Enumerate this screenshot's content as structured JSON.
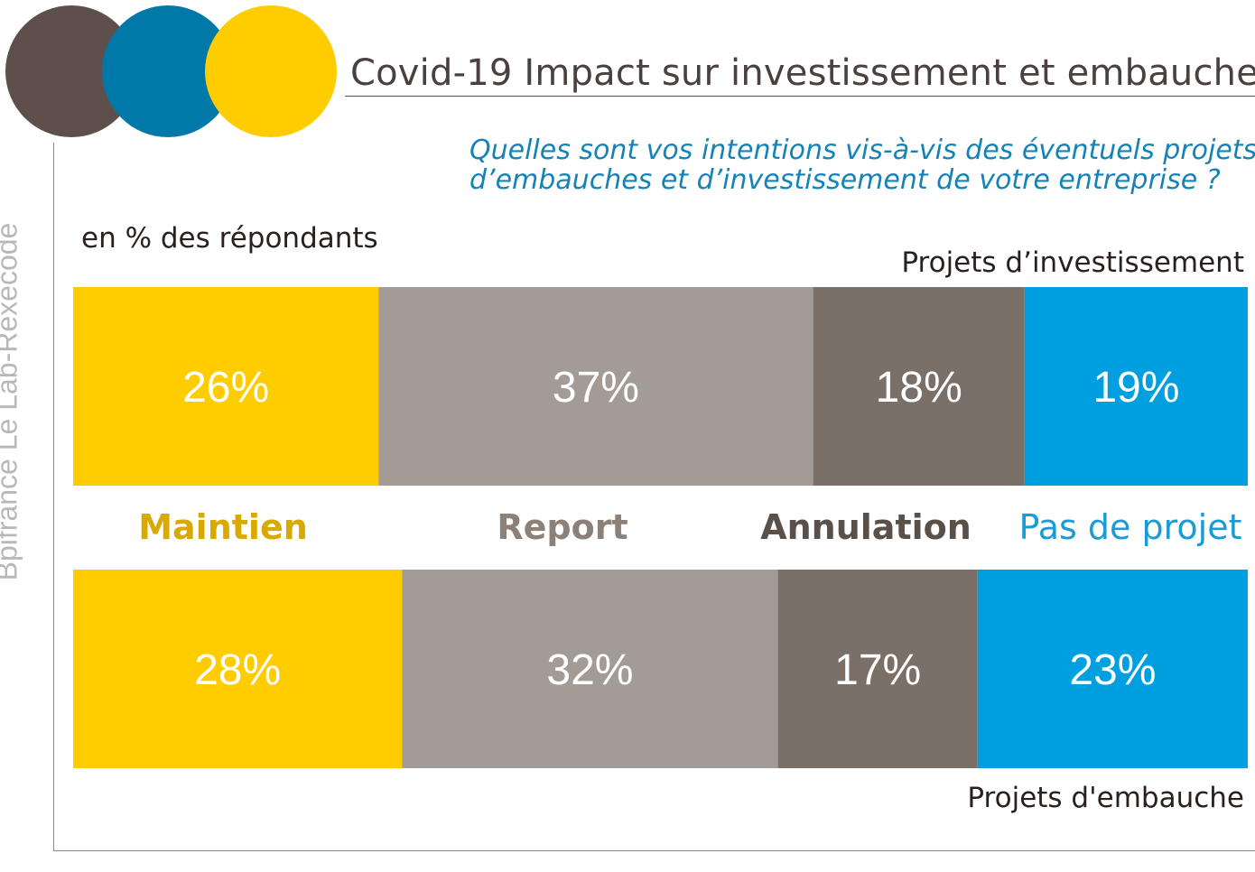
{
  "title": "Covid-19 Impact sur investissement et embauche",
  "question": [
    "Quelles sont vos intentions vis-à-vis des éventuels projets",
    "d’embauches et d’investissement de votre entreprise ?"
  ],
  "unit_label": "en % des répondants",
  "source": "Bpifrance Le Lab-Rexecode",
  "colors": {
    "maintien": "#FFCC00",
    "report": "#A39C96",
    "annulation": "#7A7068",
    "pas_de_projet": "#00A0E0",
    "circle_dark": "#5E4F4A",
    "circle_blue": "#0079A8",
    "circle_yellow": "#FFCC00"
  },
  "chart_data": {
    "type": "bar",
    "orientation": "horizontal-stacked-100",
    "categories": [
      "Maintien",
      "Report",
      "Annulation",
      "Pas de projet"
    ],
    "category_colors": [
      "#D9A900",
      "#8C8179",
      "#5A504A",
      "#1A9BD6"
    ],
    "rows": [
      {
        "name": "Projets d’investissement",
        "values": [
          26,
          37,
          18,
          19
        ],
        "labels": [
          "26%",
          "37%",
          "18%",
          "19%"
        ]
      },
      {
        "name": "Projets d'embauche",
        "values": [
          28,
          32,
          17,
          23
        ],
        "labels": [
          "28%",
          "32%",
          "17%",
          "23%"
        ]
      }
    ],
    "xlim": [
      0,
      100
    ]
  }
}
